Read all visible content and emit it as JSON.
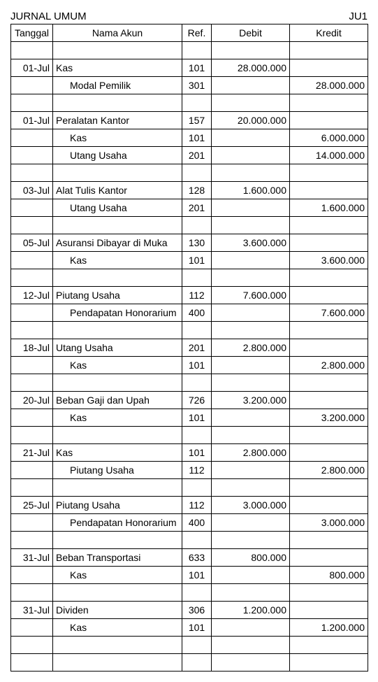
{
  "title_left": "JURNAL UMUM",
  "title_right": "JU1",
  "headers": {
    "tanggal": "Tanggal",
    "nama": "Nama Akun",
    "ref": "Ref.",
    "debit": "Debit",
    "kredit": "Kredit"
  },
  "rows": [
    {
      "tanggal": "",
      "nama": "",
      "indent": false,
      "ref": "",
      "debit": "",
      "kredit": ""
    },
    {
      "tanggal": "01-Jul",
      "nama": "Kas",
      "indent": false,
      "ref": "101",
      "debit": "28.000.000",
      "kredit": ""
    },
    {
      "tanggal": "",
      "nama": "Modal Pemilik",
      "indent": true,
      "ref": "301",
      "debit": "",
      "kredit": "28.000.000"
    },
    {
      "tanggal": "",
      "nama": "",
      "indent": false,
      "ref": "",
      "debit": "",
      "kredit": ""
    },
    {
      "tanggal": "01-Jul",
      "nama": "Peralatan Kantor",
      "indent": false,
      "ref": "157",
      "debit": "20.000.000",
      "kredit": ""
    },
    {
      "tanggal": "",
      "nama": "Kas",
      "indent": true,
      "ref": "101",
      "debit": "",
      "kredit": "6.000.000"
    },
    {
      "tanggal": "",
      "nama": "Utang Usaha",
      "indent": true,
      "ref": "201",
      "debit": "",
      "kredit": "14.000.000"
    },
    {
      "tanggal": "",
      "nama": "",
      "indent": false,
      "ref": "",
      "debit": "",
      "kredit": ""
    },
    {
      "tanggal": "03-Jul",
      "nama": "Alat Tulis Kantor",
      "indent": false,
      "ref": "128",
      "debit": "1.600.000",
      "kredit": ""
    },
    {
      "tanggal": "",
      "nama": "Utang Usaha",
      "indent": true,
      "ref": "201",
      "debit": "",
      "kredit": "1.600.000"
    },
    {
      "tanggal": "",
      "nama": "",
      "indent": false,
      "ref": "",
      "debit": "",
      "kredit": ""
    },
    {
      "tanggal": "05-Jul",
      "nama": "Asuransi Dibayar di Muka",
      "indent": false,
      "ref": "130",
      "debit": "3.600.000",
      "kredit": ""
    },
    {
      "tanggal": "",
      "nama": "Kas",
      "indent": true,
      "ref": "101",
      "debit": "",
      "kredit": "3.600.000"
    },
    {
      "tanggal": "",
      "nama": "",
      "indent": false,
      "ref": "",
      "debit": "",
      "kredit": ""
    },
    {
      "tanggal": "12-Jul",
      "nama": "Piutang Usaha",
      "indent": false,
      "ref": "112",
      "debit": "7.600.000",
      "kredit": ""
    },
    {
      "tanggal": "",
      "nama": "Pendapatan Honorarium",
      "indent": true,
      "ref": "400",
      "debit": "",
      "kredit": "7.600.000"
    },
    {
      "tanggal": "",
      "nama": "",
      "indent": false,
      "ref": "",
      "debit": "",
      "kredit": ""
    },
    {
      "tanggal": "18-Jul",
      "nama": "Utang Usaha",
      "indent": false,
      "ref": "201",
      "debit": "2.800.000",
      "kredit": ""
    },
    {
      "tanggal": "",
      "nama": "Kas",
      "indent": true,
      "ref": "101",
      "debit": "",
      "kredit": "2.800.000"
    },
    {
      "tanggal": "",
      "nama": "",
      "indent": false,
      "ref": "",
      "debit": "",
      "kredit": ""
    },
    {
      "tanggal": "20-Jul",
      "nama": "Beban Gaji dan Upah",
      "indent": false,
      "ref": "726",
      "debit": "3.200.000",
      "kredit": ""
    },
    {
      "tanggal": "",
      "nama": "Kas",
      "indent": true,
      "ref": "101",
      "debit": "",
      "kredit": "3.200.000"
    },
    {
      "tanggal": "",
      "nama": "",
      "indent": false,
      "ref": "",
      "debit": "",
      "kredit": ""
    },
    {
      "tanggal": "21-Jul",
      "nama": "Kas",
      "indent": false,
      "ref": "101",
      "debit": "2.800.000",
      "kredit": ""
    },
    {
      "tanggal": "",
      "nama": "Piutang Usaha",
      "indent": true,
      "ref": "112",
      "debit": "",
      "kredit": "2.800.000"
    },
    {
      "tanggal": "",
      "nama": "",
      "indent": false,
      "ref": "",
      "debit": "",
      "kredit": ""
    },
    {
      "tanggal": "25-Jul",
      "nama": "Piutang Usaha",
      "indent": false,
      "ref": "112",
      "debit": "3.000.000",
      "kredit": ""
    },
    {
      "tanggal": "",
      "nama": "Pendapatan Honorarium",
      "indent": true,
      "ref": "400",
      "debit": "",
      "kredit": "3.000.000"
    },
    {
      "tanggal": "",
      "nama": "",
      "indent": false,
      "ref": "",
      "debit": "",
      "kredit": ""
    },
    {
      "tanggal": "31-Jul",
      "nama": "Beban Transportasi",
      "indent": false,
      "ref": "633",
      "debit": "800.000",
      "kredit": ""
    },
    {
      "tanggal": "",
      "nama": "Kas",
      "indent": true,
      "ref": "101",
      "debit": "",
      "kredit": "800.000"
    },
    {
      "tanggal": "",
      "nama": "",
      "indent": false,
      "ref": "",
      "debit": "",
      "kredit": ""
    },
    {
      "tanggal": "31-Jul",
      "nama": "Dividen",
      "indent": false,
      "ref": "306",
      "debit": "1.200.000",
      "kredit": ""
    },
    {
      "tanggal": "",
      "nama": "Kas",
      "indent": true,
      "ref": "101",
      "debit": "",
      "kredit": "1.200.000"
    },
    {
      "tanggal": "",
      "nama": "",
      "indent": false,
      "ref": "",
      "debit": "",
      "kredit": ""
    },
    {
      "tanggal": "",
      "nama": "",
      "indent": false,
      "ref": "",
      "debit": "",
      "kredit": ""
    }
  ]
}
